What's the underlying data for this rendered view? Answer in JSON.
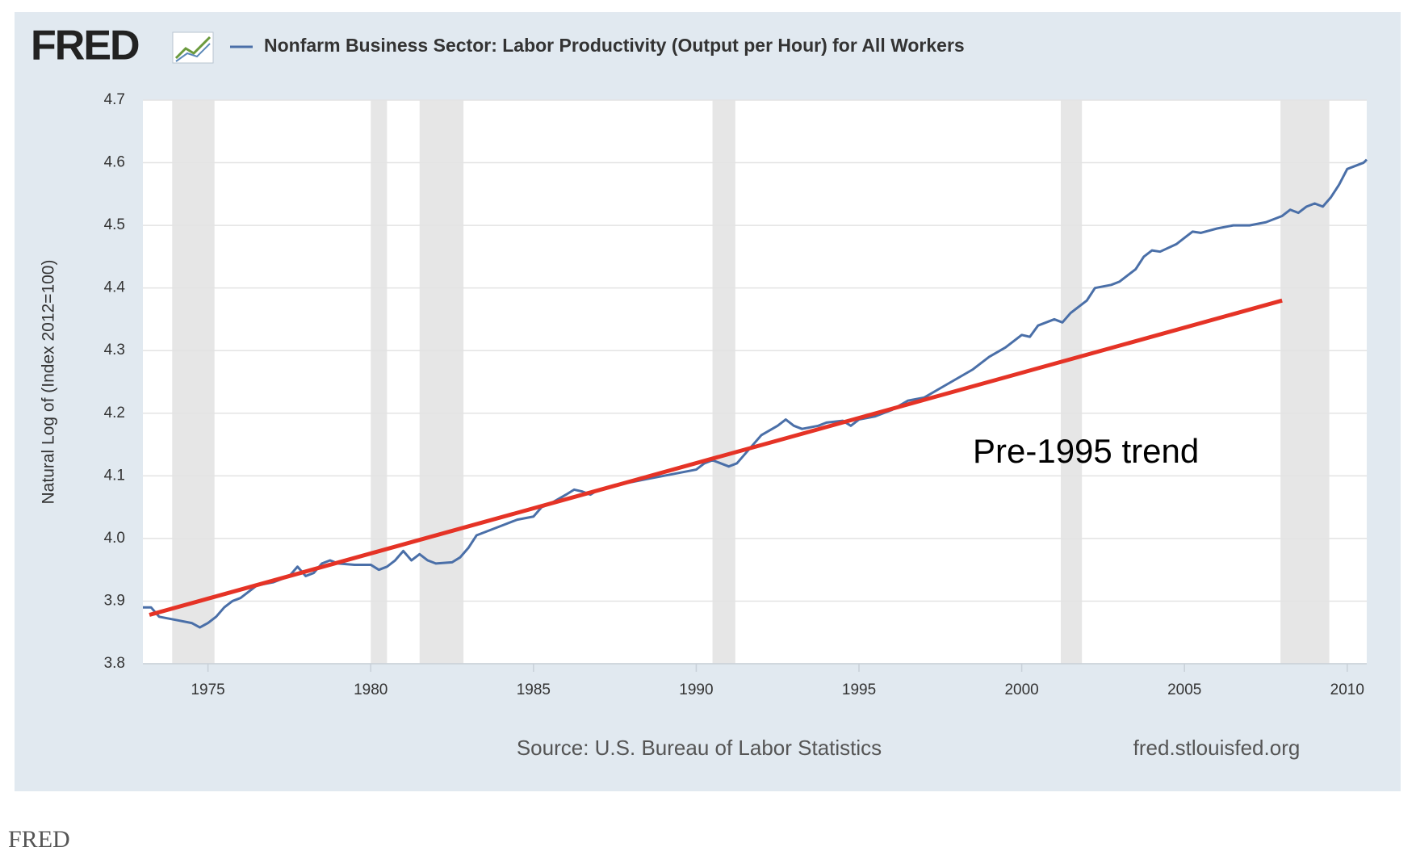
{
  "logo": "FRED",
  "caption": "FRED",
  "chart_data": {
    "type": "line",
    "y_label": "Natural Log of (Index 2012=100)",
    "source": "Source: U.S. Bureau of Labor Statistics",
    "site": "fred.stlouisfed.org",
    "xlim": [
      1973,
      2010.6
    ],
    "ylim": [
      3.8,
      4.7
    ],
    "xticks": [
      1975,
      1980,
      1985,
      1990,
      1995,
      2000,
      2005,
      2010
    ],
    "yticks": [
      3.8,
      3.9,
      {
        "value": 4,
        "label": "4.0"
      },
      4.1,
      4.2,
      4.3,
      4.4,
      4.5,
      4.6,
      4.7
    ],
    "grid": true,
    "recessions": [
      [
        1973.9,
        1975.2
      ],
      [
        1980.0,
        1980.5
      ],
      [
        1981.5,
        1982.85
      ],
      [
        1990.5,
        1991.2
      ],
      [
        2001.2,
        2001.85
      ],
      [
        2007.95,
        2009.45
      ]
    ],
    "x": [
      1973.0,
      1973.25,
      1973.5,
      1974.0,
      1974.5,
      1974.75,
      1975.0,
      1975.25,
      1975.5,
      1975.75,
      1976.0,
      1976.5,
      1977.0,
      1977.5,
      1977.75,
      1978.0,
      1978.25,
      1978.5,
      1978.75,
      1979.0,
      1979.5,
      1980.0,
      1980.25,
      1980.5,
      1980.75,
      1981.0,
      1981.25,
      1981.5,
      1981.75,
      1982.0,
      1982.5,
      1982.75,
      1983.0,
      1983.25,
      1983.75,
      1984.0,
      1984.5,
      1985.0,
      1985.25,
      1985.5,
      1986.0,
      1986.25,
      1986.5,
      1986.75,
      1987.0,
      1987.5,
      1988.0,
      1988.5,
      1989.0,
      1989.5,
      1990.0,
      1990.25,
      1990.5,
      1990.75,
      1991.0,
      1991.25,
      1991.5,
      1992.0,
      1992.5,
      1992.75,
      1993.0,
      1993.25,
      1993.75,
      1994.0,
      1994.5,
      1994.75,
      1995.0,
      1995.5,
      1996.0,
      1996.5,
      1997.0,
      1997.5,
      1998.0,
      1998.5,
      1999.0,
      1999.5,
      2000.0,
      2000.25,
      2000.5,
      2000.75,
      2001.0,
      2001.25,
      2001.5,
      2002.0,
      2002.25,
      2002.75,
      2003.0,
      2003.5,
      2003.75,
      2004.0,
      2004.25,
      2004.75,
      2005.0,
      2005.25,
      2005.5,
      2006.0,
      2006.5,
      2007.0,
      2007.5,
      2008.0,
      2008.25,
      2008.5,
      2008.75,
      2009.0,
      2009.25,
      2009.5,
      2009.75,
      2010.0,
      2010.25,
      2010.5,
      2010.6
    ],
    "series": [
      {
        "name": "Nonfarm Business Sector: Labor Productivity (Output per Hour) for All Workers",
        "color": "#4a6fa8",
        "values": [
          3.89,
          3.89,
          3.875,
          3.87,
          3.865,
          3.858,
          3.865,
          3.875,
          3.89,
          3.9,
          3.905,
          3.925,
          3.93,
          3.94,
          3.955,
          3.94,
          3.945,
          3.96,
          3.965,
          3.96,
          3.958,
          3.958,
          3.95,
          3.955,
          3.965,
          3.98,
          3.965,
          3.975,
          3.965,
          3.96,
          3.962,
          3.97,
          3.985,
          4.005,
          4.015,
          4.02,
          4.03,
          4.035,
          4.05,
          4.055,
          4.07,
          4.078,
          4.075,
          4.07,
          4.078,
          4.085,
          4.09,
          4.095,
          4.1,
          4.105,
          4.11,
          4.12,
          4.125,
          4.12,
          4.115,
          4.12,
          4.135,
          4.165,
          4.18,
          4.19,
          4.18,
          4.175,
          4.18,
          4.185,
          4.188,
          4.18,
          4.19,
          4.195,
          4.205,
          4.22,
          4.225,
          4.24,
          4.255,
          4.27,
          4.29,
          4.305,
          4.325,
          4.322,
          4.34,
          4.345,
          4.35,
          4.345,
          4.36,
          4.38,
          4.4,
          4.405,
          4.41,
          4.43,
          4.45,
          4.46,
          4.458,
          4.47,
          4.48,
          4.49,
          4.488,
          4.495,
          4.5,
          4.5,
          4.505,
          4.515,
          4.525,
          4.52,
          4.53,
          4.535,
          4.53,
          4.545,
          4.565,
          4.59,
          4.595,
          4.6,
          4.605
        ]
      }
    ],
    "trend": {
      "label": "Pre-1995 trend",
      "color": "#e53326",
      "x": [
        1973.2,
        2008.0
      ],
      "values": [
        3.878,
        4.38
      ]
    }
  }
}
